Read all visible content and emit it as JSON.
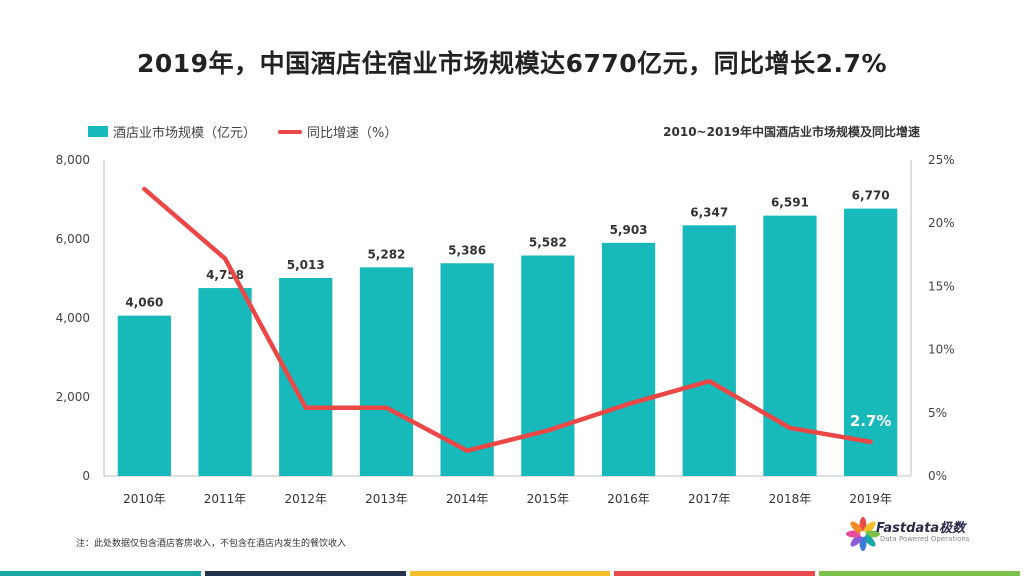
{
  "title": "2019年，中国酒店住宿业市场规模达6770亿元，同比增长2.7%",
  "subtitle": "2010~2019年中国酒店业市场规模及同比增速",
  "legend": {
    "bar_label": "酒店业市场规模（亿元）",
    "line_label": "同比增速（%）"
  },
  "footnote": "注：此处数据仅包含酒店客房收入，不包含在酒店内发生的餐饮收入",
  "logo": {
    "brand": "Fastdata极数",
    "tagline": "Data Powered Operations"
  },
  "colors": {
    "bar": "#17b9bb",
    "line": "#ec4747",
    "highlight_label": "#ffffff"
  },
  "bottom_strip_colors": [
    "#17a8a6",
    "#22324a",
    "#f2bf2a",
    "#e94c4c",
    "#7cc24a"
  ],
  "chart_data": {
    "type": "bar",
    "categories": [
      "2010年",
      "2011年",
      "2012年",
      "2013年",
      "2014年",
      "2015年",
      "2016年",
      "2017年",
      "2018年",
      "2019年"
    ],
    "series": [
      {
        "name": "酒店业市场规模（亿元）",
        "type": "bar",
        "axis": "left",
        "values": [
          4060,
          4758,
          5013,
          5282,
          5386,
          5582,
          5903,
          6347,
          6591,
          6770
        ],
        "labels": [
          "4,060",
          "4,758",
          "5,013",
          "5,282",
          "5,386",
          "5,582",
          "5,903",
          "6,347",
          "6,591",
          "6,770"
        ]
      },
      {
        "name": "同比增速（%）",
        "type": "line",
        "axis": "right",
        "values": [
          22.7,
          17.2,
          5.4,
          5.4,
          2.0,
          3.6,
          5.7,
          7.5,
          3.8,
          2.7
        ]
      }
    ],
    "y_left": {
      "min": 0,
      "max": 8000,
      "ticks": [
        "0",
        "2,000",
        "4,000",
        "6,000",
        "8,000"
      ],
      "tick_values": [
        0,
        2000,
        4000,
        6000,
        8000
      ]
    },
    "y_right": {
      "min": 0,
      "max": 25,
      "ticks": [
        "0%",
        "5%",
        "10%",
        "15%",
        "20%",
        "25%"
      ],
      "tick_values": [
        0,
        5,
        10,
        15,
        20,
        25
      ]
    },
    "line_annotation": {
      "index": 9,
      "text": "2.7%"
    },
    "grid": false,
    "legend_position": "top-left"
  }
}
